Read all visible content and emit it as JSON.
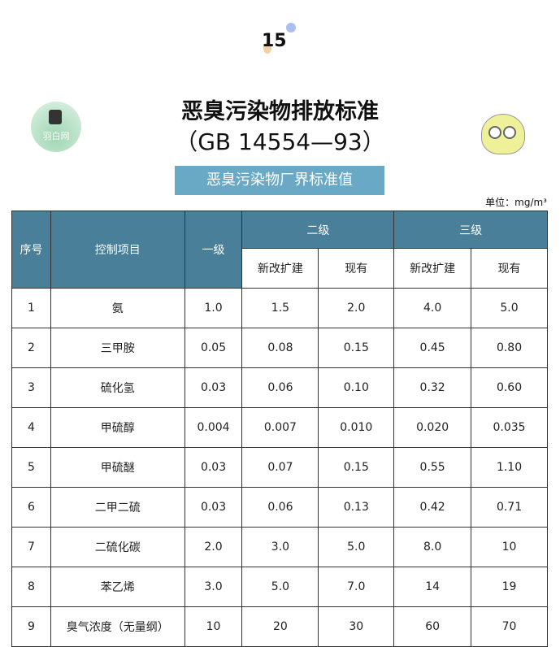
{
  "page_number": "15",
  "title": "恶臭污染物排放标准",
  "subtitle": "（GB 14554—93）",
  "banner": "恶臭污染物厂界标准值",
  "unit": "单位：mg/m³",
  "logo_text": "羽白网",
  "colors": {
    "header": "#4a7f9a",
    "banner": "#6aa9c6"
  },
  "table": {
    "headers": {
      "no": "序号",
      "item": "控制项目",
      "level1": "一级",
      "level2": "二级",
      "level3": "三级",
      "new": "新改扩建",
      "existing": "现有"
    },
    "rows": [
      [
        "1",
        "氨",
        "1.0",
        "1.5",
        "2.0",
        "4.0",
        "5.0"
      ],
      [
        "2",
        "三甲胺",
        "0.05",
        "0.08",
        "0.15",
        "0.45",
        "0.80"
      ],
      [
        "3",
        "硫化氢",
        "0.03",
        "0.06",
        "0.10",
        "0.32",
        "0.60"
      ],
      [
        "4",
        "甲硫醇",
        "0.004",
        "0.007",
        "0.010",
        "0.020",
        "0.035"
      ],
      [
        "5",
        "甲硫醚",
        "0.03",
        "0.07",
        "0.15",
        "0.55",
        "1.10"
      ],
      [
        "6",
        "二甲二硫",
        "0.03",
        "0.06",
        "0.13",
        "0.42",
        "0.71"
      ],
      [
        "7",
        "二硫化碳",
        "2.0",
        "3.0",
        "5.0",
        "8.0",
        "10"
      ],
      [
        "8",
        "苯乙烯",
        "3.0",
        "5.0",
        "7.0",
        "14",
        "19"
      ],
      [
        "9",
        "臭气浓度（无量纲）",
        "10",
        "20",
        "30",
        "60",
        "70"
      ]
    ]
  }
}
